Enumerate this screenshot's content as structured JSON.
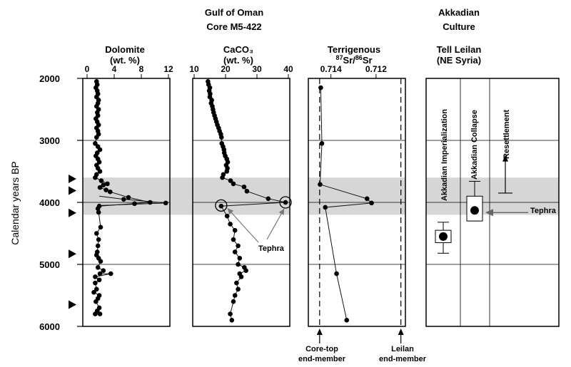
{
  "chart_data": {
    "type": "multi-panel stratigraphic profile",
    "site_title": [
      "Gulf of Oman",
      "Core M5-422"
    ],
    "culture_title": [
      "Akkadian",
      "Culture"
    ],
    "y_axis": {
      "label": "Calendar years BP",
      "range": [
        2000,
        6000
      ],
      "ticks": [
        "2000",
        "3000",
        "4000",
        "5000",
        "6000"
      ]
    },
    "gridlines_years": [
      3000,
      4000,
      5000
    ],
    "shaded_band_years": [
      3600,
      4200
    ],
    "triangle_marker_years": [
      3620,
      3810,
      4170,
      4830,
      5650
    ],
    "panels": [
      {
        "id": "dolomite",
        "title": [
          "Dolomite",
          "(wt. %)"
        ],
        "xlim": [
          0,
          12
        ],
        "tick_values": [
          0,
          4,
          8,
          12
        ],
        "tick_labels": [
          "0",
          "4",
          "8",
          "12"
        ],
        "points": [
          [
            1.4,
            2050
          ],
          [
            1.5,
            2100
          ],
          [
            1.3,
            2150
          ],
          [
            1.5,
            2200
          ],
          [
            1.6,
            2250
          ],
          [
            1.4,
            2300
          ],
          [
            1.7,
            2350
          ],
          [
            1.6,
            2400
          ],
          [
            1.4,
            2450
          ],
          [
            1.7,
            2500
          ],
          [
            1.5,
            2550
          ],
          [
            1.6,
            2600
          ],
          [
            1.3,
            2650
          ],
          [
            1.5,
            2700
          ],
          [
            1.7,
            2750
          ],
          [
            1.4,
            2800
          ],
          [
            1.6,
            2850
          ],
          [
            1.7,
            2900
          ],
          [
            1.4,
            2950
          ],
          [
            1.2,
            3050
          ],
          [
            1.6,
            3100
          ],
          [
            1.9,
            3150
          ],
          [
            1.5,
            3200
          ],
          [
            1.3,
            3250
          ],
          [
            1.6,
            3300
          ],
          [
            1.8,
            3350
          ],
          [
            1.4,
            3400
          ],
          [
            1.6,
            3450
          ],
          [
            1.9,
            3500
          ],
          [
            1.4,
            3550
          ],
          [
            1.2,
            3600
          ],
          [
            2.1,
            3650
          ],
          [
            3.0,
            3700
          ],
          [
            2.4,
            3720
          ],
          [
            1.9,
            3760
          ],
          [
            2.8,
            3800
          ],
          [
            3.4,
            3830
          ],
          [
            6.1,
            3920
          ],
          [
            9.3,
            4000
          ],
          [
            1.8,
            4060
          ],
          [
            1.6,
            4100
          ],
          [
            1.7,
            4160
          ],
          [
            2.0,
            4400
          ],
          [
            1.4,
            4500
          ],
          [
            1.7,
            4600
          ],
          [
            1.6,
            4700
          ],
          [
            1.5,
            4800
          ],
          [
            1.4,
            4850
          ],
          [
            1.7,
            4900
          ],
          [
            2.0,
            4950
          ],
          [
            1.6,
            5050
          ],
          [
            2.4,
            5100
          ],
          [
            1.9,
            5150
          ],
          [
            3.5,
            5150
          ],
          [
            1.2,
            5200
          ],
          [
            1.8,
            5250
          ],
          [
            1.2,
            5300
          ],
          [
            1.4,
            5400
          ],
          [
            1.0,
            5450
          ],
          [
            1.8,
            5500
          ],
          [
            1.6,
            5550
          ],
          [
            1.3,
            5600
          ],
          [
            1.8,
            5700
          ],
          [
            1.5,
            5750
          ],
          [
            1.2,
            5800
          ],
          [
            1.9,
            5800
          ]
        ],
        "outliers": [
          [
            5.4,
            3950
          ],
          [
            7.0,
            4020
          ],
          [
            11.6,
            4010
          ]
        ]
      },
      {
        "id": "caco3",
        "title": [
          "CaCO₃",
          "(wt. %)"
        ],
        "xlim": [
          10,
          40
        ],
        "tick_values": [
          10,
          20,
          30,
          40
        ],
        "tick_labels": [
          "10",
          "20",
          "30",
          "40"
        ],
        "points": [
          [
            14.4,
            2050
          ],
          [
            14.6,
            2100
          ],
          [
            15.0,
            2150
          ],
          [
            14.8,
            2200
          ],
          [
            15.1,
            2250
          ],
          [
            15.0,
            2300
          ],
          [
            15.6,
            2350
          ],
          [
            15.4,
            2400
          ],
          [
            15.8,
            2450
          ],
          [
            16.0,
            2500
          ],
          [
            16.2,
            2550
          ],
          [
            16.5,
            2600
          ],
          [
            16.8,
            2650
          ],
          [
            17.1,
            2700
          ],
          [
            17.4,
            2750
          ],
          [
            17.8,
            2800
          ],
          [
            18.1,
            2850
          ],
          [
            18.5,
            2900
          ],
          [
            18.7,
            2950
          ],
          [
            18.8,
            3050
          ],
          [
            19.2,
            3100
          ],
          [
            19.5,
            3150
          ],
          [
            19.6,
            3200
          ],
          [
            19.9,
            3250
          ],
          [
            20.4,
            3300
          ],
          [
            20.7,
            3350
          ],
          [
            20.2,
            3400
          ],
          [
            20.6,
            3450
          ],
          [
            20.4,
            3500
          ],
          [
            19.3,
            3550
          ],
          [
            19.0,
            3600
          ],
          [
            21.6,
            3650
          ],
          [
            22.5,
            3700
          ],
          [
            25.9,
            3750
          ],
          [
            26.8,
            3820
          ],
          [
            33.6,
            3940
          ],
          [
            39.1,
            4000
          ],
          [
            18.6,
            4060
          ],
          [
            20.5,
            4220
          ],
          [
            21.5,
            4350
          ],
          [
            23.0,
            4450
          ],
          [
            22.5,
            4600
          ],
          [
            24.0,
            4700
          ],
          [
            23.0,
            4800
          ],
          [
            24.5,
            4900
          ],
          [
            24.0,
            5000
          ],
          [
            26.0,
            5050
          ],
          [
            26.5,
            5100
          ],
          [
            24.5,
            5150
          ],
          [
            25.0,
            5200
          ],
          [
            23.5,
            5300
          ],
          [
            24.0,
            5400
          ],
          [
            23.0,
            5500
          ],
          [
            22.5,
            5600
          ],
          [
            21.5,
            5800
          ],
          [
            22.0,
            5900
          ]
        ],
        "circled_points": [
          [
            18.6,
            4050
          ],
          [
            39.1,
            4000
          ]
        ],
        "annotation": "Tephra"
      },
      {
        "id": "strontium",
        "title": [
          "Terrigenous",
          "87Sr/86Sr"
        ],
        "xlim": [
          0.715,
          0.7107
        ],
        "tick_values": [
          0.714,
          0.712
        ],
        "tick_labels": [
          "0.714",
          "0.712"
        ],
        "points": [
          [
            0.71445,
            2150
          ],
          [
            0.7144,
            3050
          ],
          [
            0.71448,
            3710
          ],
          [
            0.7124,
            3940
          ],
          [
            0.7122,
            4010
          ],
          [
            0.71425,
            4080
          ],
          [
            0.71375,
            5150
          ],
          [
            0.7133,
            5900
          ]
        ],
        "reference_lines": [
          {
            "value": 0.7145,
            "label": [
              "Core-top",
              "end-member"
            ]
          },
          {
            "value": 0.7109,
            "label": [
              "Leilan",
              "end-member"
            ]
          }
        ]
      },
      {
        "id": "culture",
        "title": [
          "Tell Leilan",
          "(NE Syria)"
        ],
        "events": [
          {
            "label": "Akkadian Imperialization",
            "center": 4550,
            "box": [
              4450,
              4650
            ],
            "whiskers": [
              4320,
              4820
            ]
          },
          {
            "label": "Akkadian Collapse",
            "center": 4130,
            "box": [
              3900,
              4300
            ],
            "whiskers": [
              3660,
              4300
            ]
          },
          {
            "label": "Resettlement",
            "bar": 3850,
            "arrow_top": 3260
          }
        ],
        "annotation": "Tephra"
      }
    ]
  }
}
